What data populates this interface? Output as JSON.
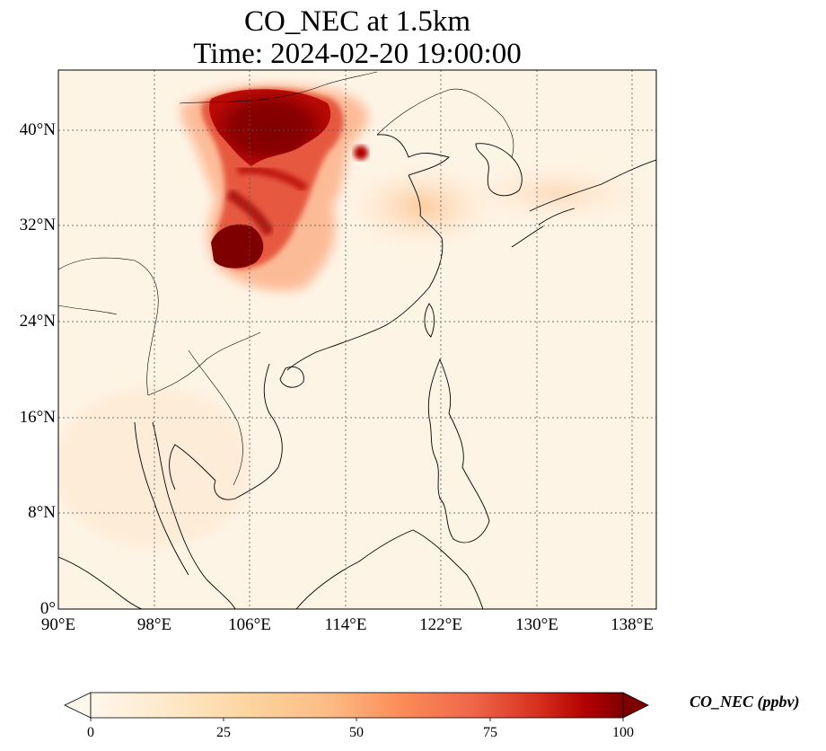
{
  "title": {
    "line1": "CO_NEC at 1.5km",
    "line2": "Time: 2024-02-20 19:00:00"
  },
  "map": {
    "lon_range": [
      90,
      140
    ],
    "lat_range": [
      0,
      45
    ],
    "lon_ticks": [
      "90°E",
      "98°E",
      "106°E",
      "114°E",
      "122°E",
      "130°E",
      "138°E"
    ],
    "lat_ticks": [
      "0°",
      "8°N",
      "16°N",
      "24°N",
      "32°N",
      "40°N"
    ],
    "gridlines": true,
    "colormap": "OrRd",
    "plume_colors": {
      "low": "#fef3e4",
      "mid": "#fdbb84",
      "high": "#ef6548",
      "max": "#7f0000"
    }
  },
  "colorbar": {
    "label": "CO_NEC (ppbv)",
    "ticks": [
      "0",
      "25",
      "50",
      "75",
      "100"
    ],
    "min": 0,
    "max": 100,
    "extend": "both"
  }
}
